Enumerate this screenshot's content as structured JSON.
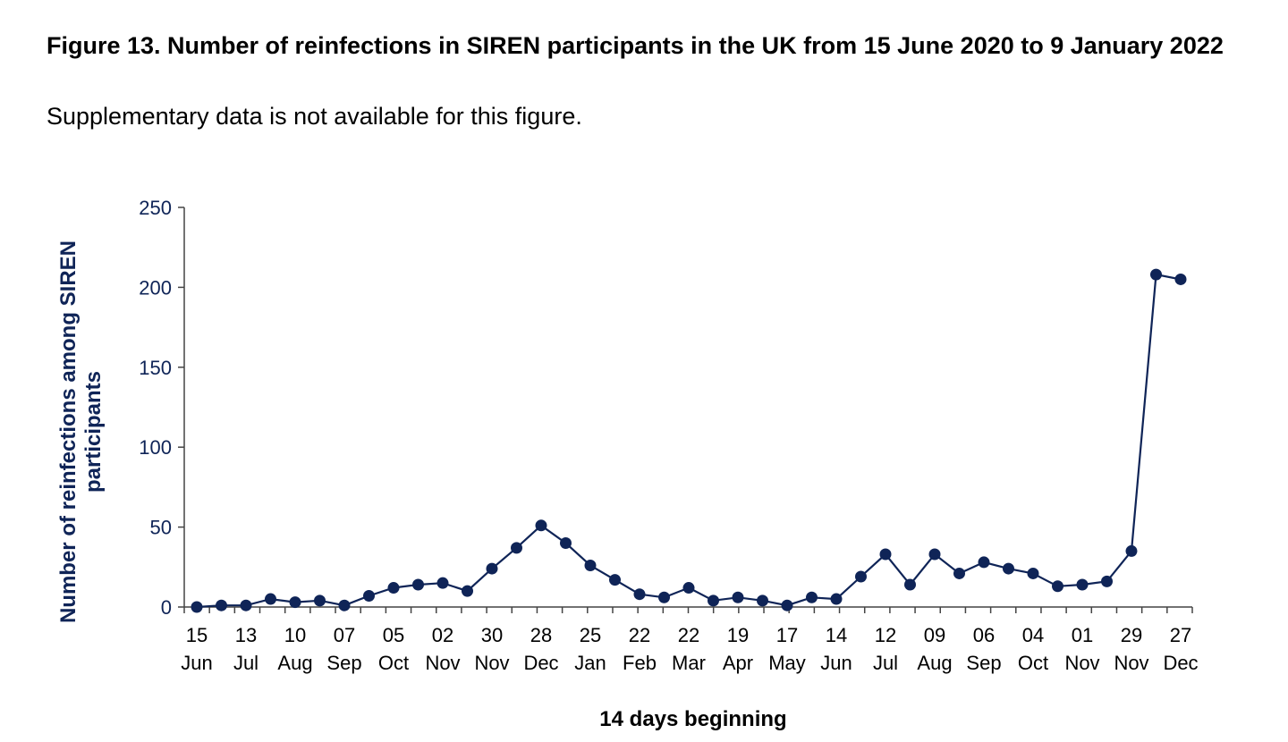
{
  "figure": {
    "title": "Figure 13. Number of reinfections in SIREN participants in the UK from 15 June 2020 to 9 January 2022",
    "note": "Supplementary data is not available for this figure."
  },
  "chart_data": {
    "type": "line",
    "xlabel": "14 days beginning",
    "ylabel_lines": [
      "Number of reinfections among SIREN",
      "participants"
    ],
    "ylim": [
      0,
      250
    ],
    "yticks": [
      0,
      50,
      100,
      150,
      200,
      250
    ],
    "x_tick_labels": [
      {
        "day": "15",
        "month": "Jun"
      },
      {
        "day": "13",
        "month": "Jul"
      },
      {
        "day": "10",
        "month": "Aug"
      },
      {
        "day": "07",
        "month": "Sep"
      },
      {
        "day": "05",
        "month": "Oct"
      },
      {
        "day": "02",
        "month": "Nov"
      },
      {
        "day": "30",
        "month": "Nov"
      },
      {
        "day": "28",
        "month": "Dec"
      },
      {
        "day": "25",
        "month": "Jan"
      },
      {
        "day": "22",
        "month": "Feb"
      },
      {
        "day": "22",
        "month": "Mar"
      },
      {
        "day": "19",
        "month": "Apr"
      },
      {
        "day": "17",
        "month": "May"
      },
      {
        "day": "14",
        "month": "Jun"
      },
      {
        "day": "12",
        "month": "Jul"
      },
      {
        "day": "09",
        "month": "Aug"
      },
      {
        "day": "06",
        "month": "Sep"
      },
      {
        "day": "04",
        "month": "Oct"
      },
      {
        "day": "01",
        "month": "Nov"
      },
      {
        "day": "29",
        "month": "Nov"
      },
      {
        "day": "27",
        "month": "Dec"
      }
    ],
    "grid": false,
    "color": "#0f2457",
    "series": [
      {
        "points": [
          {
            "x": "2020-06-15",
            "y": 0
          },
          {
            "x": "2020-06-29",
            "y": 1
          },
          {
            "x": "2020-07-13",
            "y": 1
          },
          {
            "x": "2020-07-27",
            "y": 5
          },
          {
            "x": "2020-08-10",
            "y": 3
          },
          {
            "x": "2020-08-24",
            "y": 4
          },
          {
            "x": "2020-09-07",
            "y": 1
          },
          {
            "x": "2020-09-21",
            "y": 7
          },
          {
            "x": "2020-10-05",
            "y": 12
          },
          {
            "x": "2020-10-19",
            "y": 14
          },
          {
            "x": "2020-11-02",
            "y": 15
          },
          {
            "x": "2020-11-16",
            "y": 10
          },
          {
            "x": "2020-11-30",
            "y": 24
          },
          {
            "x": "2020-12-14",
            "y": 37
          },
          {
            "x": "2020-12-28",
            "y": 51
          },
          {
            "x": "2021-01-11",
            "y": 40
          },
          {
            "x": "2021-01-25",
            "y": 26
          },
          {
            "x": "2021-02-08",
            "y": 17
          },
          {
            "x": "2021-02-22",
            "y": 8
          },
          {
            "x": "2021-03-08",
            "y": 6
          },
          {
            "x": "2021-03-22",
            "y": 12
          },
          {
            "x": "2021-04-05",
            "y": 4
          },
          {
            "x": "2021-04-19",
            "y": 6
          },
          {
            "x": "2021-05-03",
            "y": 4
          },
          {
            "x": "2021-05-17",
            "y": 1
          },
          {
            "x": "2021-05-31",
            "y": 6
          },
          {
            "x": "2021-06-14",
            "y": 5
          },
          {
            "x": "2021-06-28",
            "y": 19
          },
          {
            "x": "2021-07-12",
            "y": 33
          },
          {
            "x": "2021-07-26",
            "y": 14
          },
          {
            "x": "2021-08-09",
            "y": 33
          },
          {
            "x": "2021-08-23",
            "y": 21
          },
          {
            "x": "2021-09-06",
            "y": 28
          },
          {
            "x": "2021-09-20",
            "y": 24
          },
          {
            "x": "2021-10-04",
            "y": 21
          },
          {
            "x": "2021-10-18",
            "y": 13
          },
          {
            "x": "2021-11-01",
            "y": 14
          },
          {
            "x": "2021-11-15",
            "y": 16
          },
          {
            "x": "2021-11-29",
            "y": 35
          },
          {
            "x": "2021-12-13",
            "y": 208
          },
          {
            "x": "2021-12-27",
            "y": 205
          }
        ]
      }
    ]
  }
}
